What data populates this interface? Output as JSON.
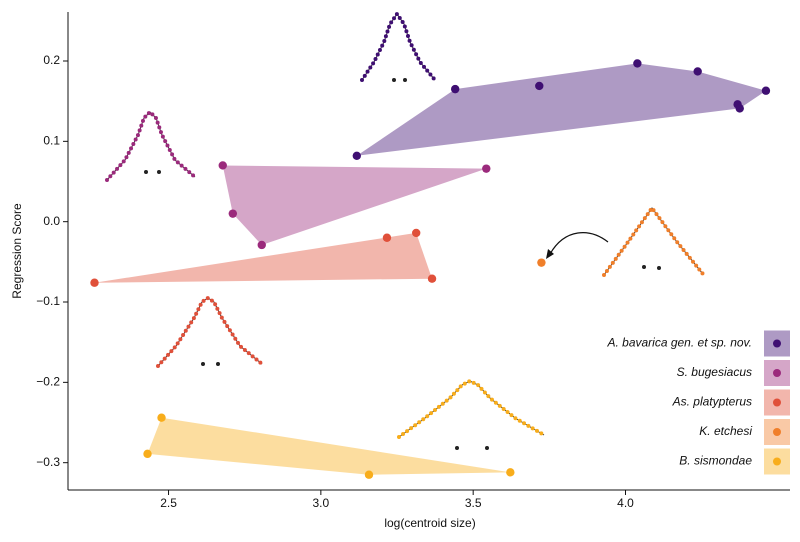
{
  "chart_data": {
    "type": "scatter",
    "x_label": "log(centroid size)",
    "y_label": "Regression Score",
    "xlim": [
      2.17,
      4.54
    ],
    "ylim": [
      -0.334,
      0.261
    ],
    "xticks": [
      2.5,
      {
        "value": 3,
        "label": "3.0"
      },
      3.5,
      {
        "value": 4,
        "label": "4.0"
      }
    ],
    "yticks": [
      0.2,
      0.1,
      {
        "value": 0,
        "label": "0.0"
      },
      {
        "value": -0.1,
        "label": "−0.1"
      },
      {
        "value": -0.2,
        "label": "−0.2"
      },
      {
        "value": -0.3,
        "label": "−0.3"
      }
    ],
    "legend": "lower right",
    "series": [
      {
        "name": "A. bavarica gen. et sp. nov.",
        "color": "#3f0f72",
        "x": [
          3.118,
          3.441,
          3.717,
          4.039,
          4.237,
          4.368,
          4.375,
          4.461
        ],
        "values": [
          0.082,
          0.165,
          0.169,
          0.197,
          0.187,
          0.146,
          0.141,
          0.163
        ]
      },
      {
        "name": "S. bugesiacus",
        "color": "#9b2a7c",
        "x": [
          2.678,
          2.711,
          2.806,
          3.543
        ],
        "values": [
          0.07,
          0.01,
          -0.029,
          0.066
        ]
      },
      {
        "name": "As. platypterus",
        "color": "#e0503a",
        "x": [
          2.257,
          3.217,
          3.313,
          3.365
        ],
        "values": [
          -0.076,
          -0.02,
          -0.014,
          -0.071
        ]
      },
      {
        "name": "K. etchesi",
        "color": "#f07f2a",
        "x": [
          3.724
        ],
        "values": [
          -0.051
        ]
      },
      {
        "name": "B. sismondae",
        "color": "#f8ad1b",
        "x": [
          2.431,
          2.477,
          3.158,
          3.622
        ],
        "values": [
          -0.289,
          -0.244,
          -0.315,
          -0.312
        ]
      }
    ]
  }
}
